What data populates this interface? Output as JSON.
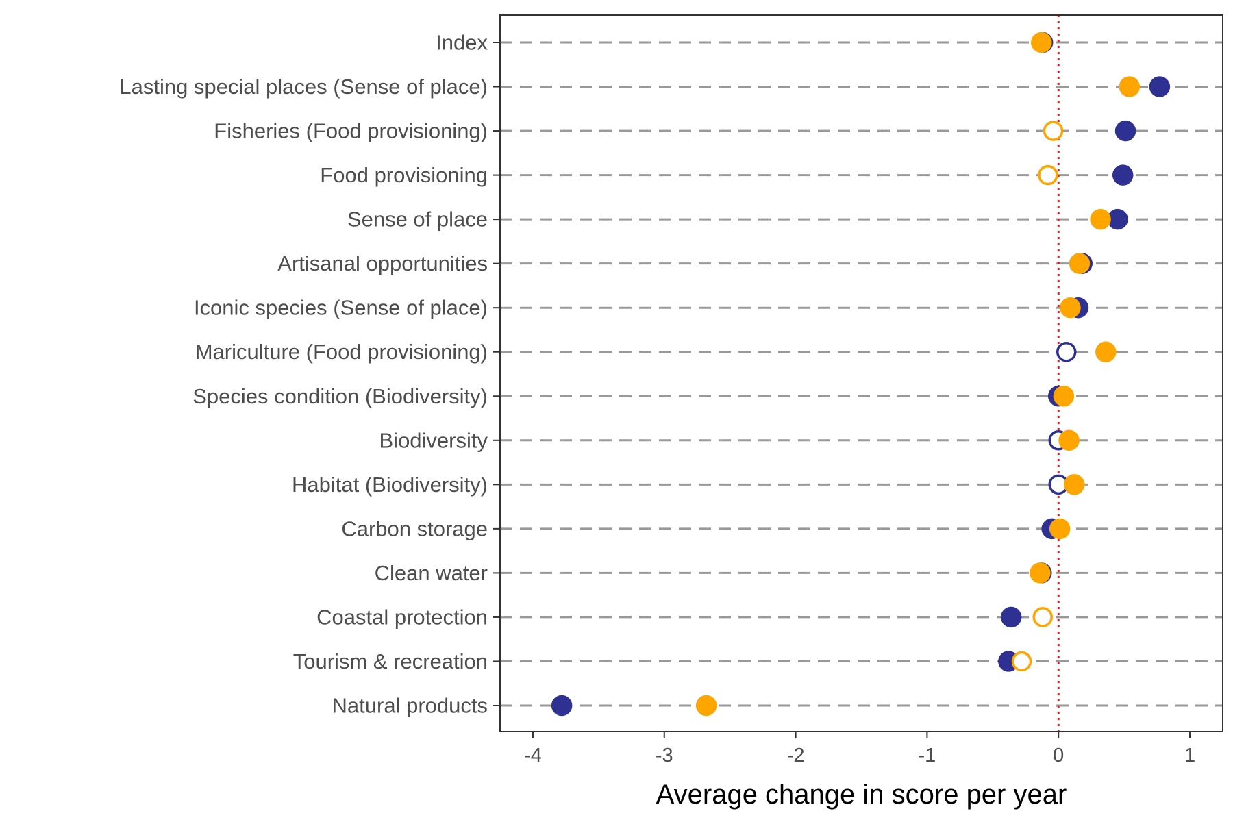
{
  "chart_data": {
    "type": "scatter",
    "title": "",
    "xlabel": "Average change in score per year",
    "ylabel": "",
    "xlim": [
      -4.25,
      1.25
    ],
    "x_ticks": [
      "-4",
      "-3",
      "-2",
      "-1",
      "0",
      "1"
    ],
    "x_tick_values": [
      -4,
      -3,
      -2,
      -1,
      0,
      1
    ],
    "reference_line": {
      "x": 0,
      "style": "dotted",
      "color": "#e41a1c"
    },
    "grid": "horizontal dashed per category",
    "legend": "none",
    "categories": [
      "Index",
      "Lasting special places (Sense of place)",
      "Fisheries (Food provisioning)",
      "Food provisioning",
      "Sense of place",
      "Artisanal opportunities",
      "Iconic species (Sense of place)",
      "Mariculture (Food provisioning)",
      "Species condition (Biodiversity)",
      "Biodiversity",
      "Habitat (Biodiversity)",
      "Carbon storage",
      "Clean water",
      "Coastal protection",
      "Tourism & recreation",
      "Natural products"
    ],
    "series": [
      {
        "color": "#2e3192",
        "values": [
          -0.12,
          0.77,
          0.51,
          0.49,
          0.45,
          0.18,
          0.15,
          0.06,
          0.0,
          0.0,
          0.0,
          -0.05,
          -0.13,
          -0.36,
          -0.38,
          -3.78
        ],
        "filled": [
          true,
          true,
          true,
          true,
          true,
          true,
          true,
          false,
          true,
          false,
          false,
          true,
          true,
          true,
          true,
          true
        ]
      },
      {
        "color": "#ffa500",
        "values": [
          -0.13,
          0.54,
          -0.04,
          -0.08,
          0.32,
          0.16,
          0.09,
          0.36,
          0.04,
          0.08,
          0.12,
          0.01,
          -0.14,
          -0.12,
          -0.28,
          -2.68
        ],
        "filled": [
          true,
          true,
          false,
          false,
          true,
          true,
          true,
          true,
          true,
          true,
          true,
          true,
          true,
          false,
          false,
          true
        ]
      }
    ]
  }
}
